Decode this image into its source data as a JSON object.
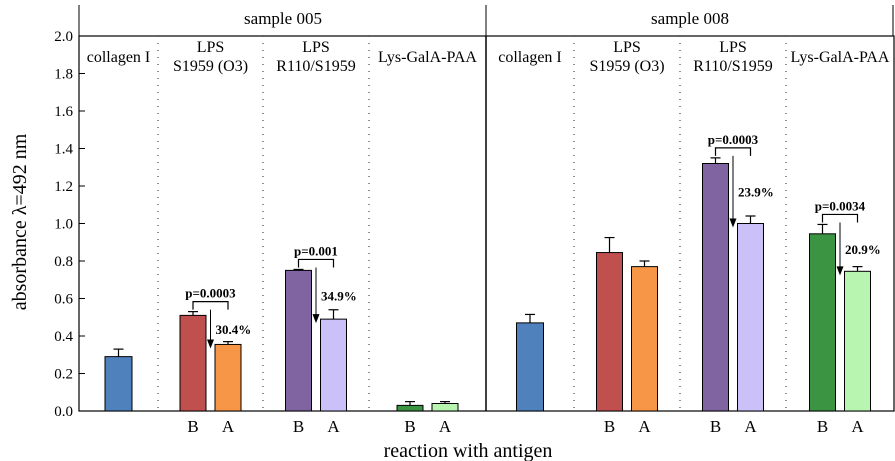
{
  "chart_data": {
    "type": "bar",
    "title": "",
    "xlabel": "reaction with antigen",
    "ylabel": "absorbance  λ=492 nm",
    "ylim": [
      0,
      2.0
    ],
    "yticks": [
      "0.0",
      "0.2",
      "0.4",
      "0.6",
      "0.8",
      "1.0",
      "1.2",
      "1.4",
      "1.6",
      "1.8",
      "2.0"
    ],
    "grid": false,
    "legend": "none",
    "panels": [
      {
        "title": "sample 005",
        "groups": [
          {
            "label_lines": [
              "collagen I"
            ],
            "bars": [
              {
                "label": "",
                "value": 0.29,
                "error": 0.04,
                "color": "#4f81bd"
              }
            ]
          },
          {
            "label_lines": [
              "LPS",
              "S1959 (O3)"
            ],
            "bars": [
              {
                "label": "B",
                "value": 0.51,
                "error": 0.02,
                "color": "#c0504d"
              },
              {
                "label": "A",
                "value": 0.355,
                "error": 0.015,
                "color": "#f79646"
              }
            ],
            "p_value": "p=0.0003",
            "reduction": "30.4%"
          },
          {
            "label_lines": [
              "LPS",
              "R110/S1959"
            ],
            "bars": [
              {
                "label": "B",
                "value": 0.75,
                "error": 0.005,
                "color": "#8064a2"
              },
              {
                "label": "A",
                "value": 0.49,
                "error": 0.05,
                "color": "#ccc0f8"
              }
            ],
            "p_value": "p=0.001",
            "reduction": "34.9%"
          },
          {
            "label_lines": [
              "Lys-GalA-PAA"
            ],
            "bars": [
              {
                "label": "B",
                "value": 0.03,
                "error": 0.02,
                "color": "#3b9442"
              },
              {
                "label": "A",
                "value": 0.04,
                "error": 0.01,
                "color": "#b8f5b0"
              }
            ]
          }
        ]
      },
      {
        "title": "sample 008",
        "groups": [
          {
            "label_lines": [
              "collagen I"
            ],
            "bars": [
              {
                "label": "",
                "value": 0.47,
                "error": 0.045,
                "color": "#4f81bd"
              }
            ]
          },
          {
            "label_lines": [
              "LPS",
              "S1959 (O3)"
            ],
            "bars": [
              {
                "label": "B",
                "value": 0.845,
                "error": 0.08,
                "color": "#c0504d"
              },
              {
                "label": "A",
                "value": 0.77,
                "error": 0.03,
                "color": "#f79646"
              }
            ]
          },
          {
            "label_lines": [
              "LPS",
              "R110/S1959"
            ],
            "bars": [
              {
                "label": "B",
                "value": 1.32,
                "error": 0.03,
                "color": "#8064a2"
              },
              {
                "label": "A",
                "value": 1.0,
                "error": 0.04,
                "color": "#ccc0f8"
              }
            ],
            "p_value": "p=0.0003",
            "reduction": "23.9%"
          },
          {
            "label_lines": [
              "Lys-GalA-PAA"
            ],
            "bars": [
              {
                "label": "B",
                "value": 0.945,
                "error": 0.05,
                "color": "#3b9442"
              },
              {
                "label": "A",
                "value": 0.745,
                "error": 0.025,
                "color": "#b8f5b0"
              }
            ],
            "p_value": "p=0.0034",
            "reduction": "20.9%"
          }
        ]
      }
    ]
  }
}
